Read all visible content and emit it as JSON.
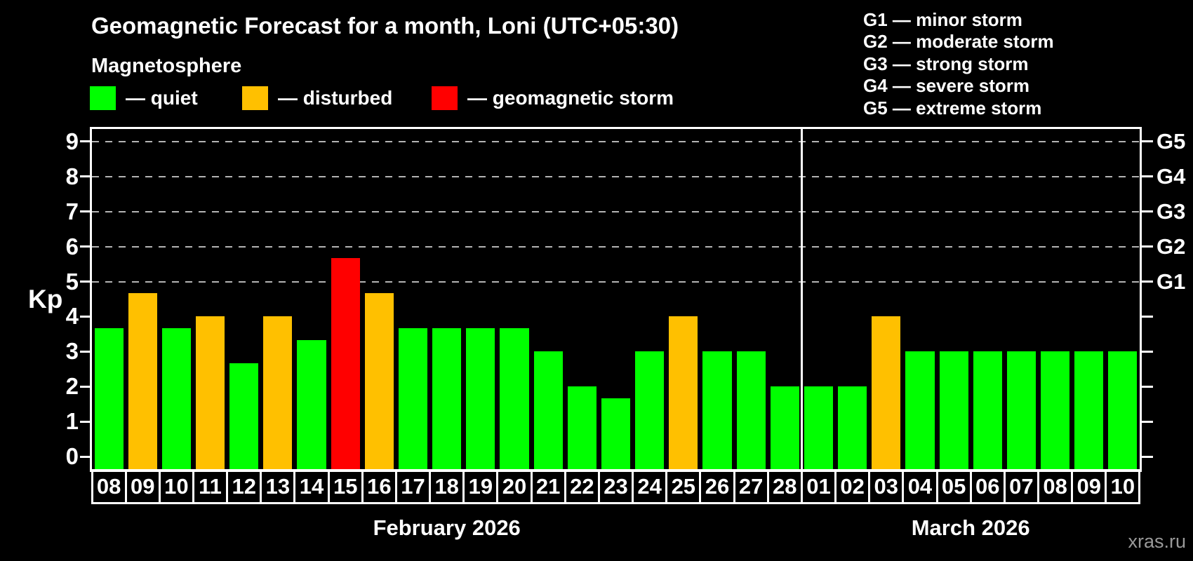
{
  "header": {
    "title": "Geomagnetic Forecast for a month, Loni (UTC+05:30)",
    "subtitle": "Magnetosphere"
  },
  "legend": {
    "items": [
      {
        "status": "quiet",
        "label": "— quiet"
      },
      {
        "status": "disturbed",
        "label": "— disturbed"
      },
      {
        "status": "storm",
        "label": "— geomagnetic storm"
      }
    ]
  },
  "g_legend": {
    "lines": [
      "G1 — minor storm",
      "G2 — moderate storm",
      "G3 — strong storm",
      "G4 — severe storm",
      "G5 — extreme storm"
    ]
  },
  "axes": {
    "y_label": "Kp",
    "y_ticks": [
      "0",
      "1",
      "2",
      "3",
      "4",
      "5",
      "6",
      "7",
      "8",
      "9"
    ],
    "g_labels": [
      {
        "kp": 5,
        "label": "G1"
      },
      {
        "kp": 6,
        "label": "G2"
      },
      {
        "kp": 7,
        "label": "G3"
      },
      {
        "kp": 8,
        "label": "G4"
      },
      {
        "kp": 9,
        "label": "G5"
      }
    ]
  },
  "watermark": "xras.ru",
  "chart_data": {
    "type": "bar",
    "title": "Geomagnetic Forecast for a month, Loni (UTC+05:30)",
    "ylabel": "Kp",
    "ylim": [
      0,
      9.4
    ],
    "grid": "horizontal dashed lines at Kp 5,6,7,8,9 (G1–G5 levels)",
    "legend_position": "top-left",
    "months": [
      {
        "label": "February 2026",
        "day_count": 21
      },
      {
        "label": "March 2026",
        "day_count": 10
      }
    ],
    "categories": [
      "08",
      "09",
      "10",
      "11",
      "12",
      "13",
      "14",
      "15",
      "16",
      "17",
      "18",
      "19",
      "20",
      "21",
      "22",
      "23",
      "24",
      "25",
      "26",
      "27",
      "28",
      "01",
      "02",
      "03",
      "04",
      "05",
      "06",
      "07",
      "08",
      "09",
      "10"
    ],
    "values": [
      3.67,
      4.67,
      3.67,
      4.0,
      2.67,
      4.0,
      3.33,
      5.67,
      4.67,
      3.67,
      3.67,
      3.67,
      3.67,
      3.0,
      2.0,
      1.67,
      3.0,
      4.0,
      3.0,
      3.0,
      2.0,
      2.0,
      2.0,
      4.0,
      3.0,
      3.0,
      3.0,
      3.0,
      3.0,
      3.0,
      3.0
    ],
    "statuses": [
      "quiet",
      "disturbed",
      "quiet",
      "disturbed",
      "quiet",
      "disturbed",
      "quiet",
      "storm",
      "disturbed",
      "quiet",
      "quiet",
      "quiet",
      "quiet",
      "quiet",
      "quiet",
      "quiet",
      "quiet",
      "disturbed",
      "quiet",
      "quiet",
      "quiet",
      "quiet",
      "quiet",
      "disturbed",
      "quiet",
      "quiet",
      "quiet",
      "quiet",
      "quiet",
      "quiet",
      "quiet"
    ],
    "status_colors": {
      "quiet": "#00ff00",
      "disturbed": "#ffc000",
      "storm": "#ff0000"
    }
  }
}
